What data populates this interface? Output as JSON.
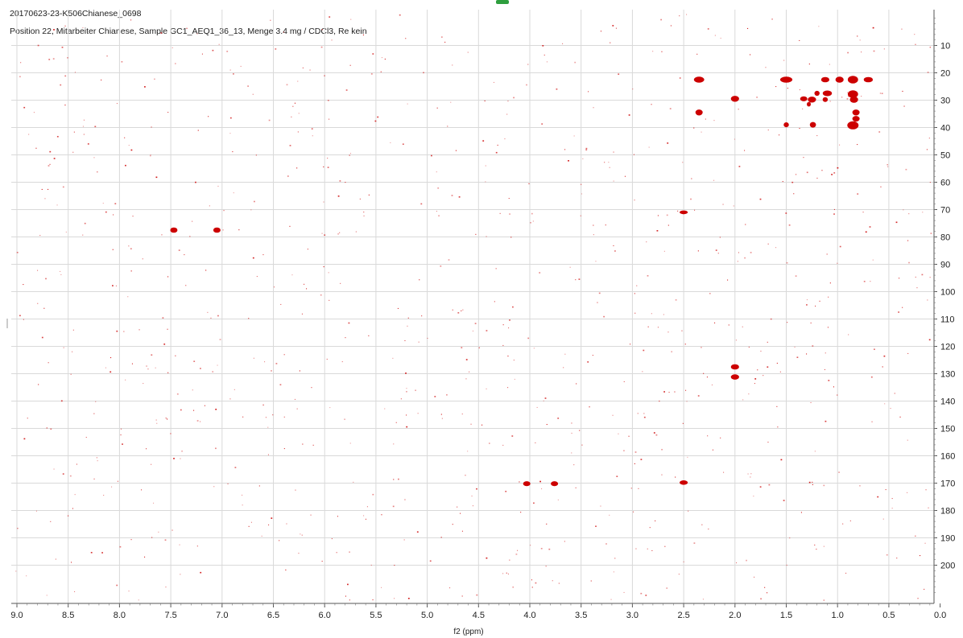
{
  "chart_data": {
    "type": "scatter",
    "title": "20170623-23-K506Chianese_0698",
    "subtitle": "Position 22, Mitarbeiter Chianese, Sample GC1_AEQ1_36_13, Menge 3.4 mg / CDCl3, Re kein",
    "xlabel": "f2 (ppm)",
    "ylabel": "",
    "xlim": [
      9.0,
      0.0
    ],
    "ylim": [
      210,
      0
    ],
    "xticks": [
      "9.0",
      "8.5",
      "8.0",
      "7.5",
      "7.0",
      "6.5",
      "6.0",
      "5.5",
      "5.0",
      "4.5",
      "4.0",
      "3.5",
      "3.0",
      "2.5",
      "2.0",
      "1.5",
      "1.0",
      "0.5",
      "0.0"
    ],
    "yticks": [
      "10",
      "20",
      "30",
      "40",
      "50",
      "60",
      "70",
      "80",
      "90",
      "100",
      "110",
      "120",
      "130",
      "140",
      "150",
      "160",
      "170",
      "180",
      "190",
      "200"
    ],
    "grid": true,
    "peak_color": "#cc0000",
    "peaks": [
      {
        "x": 2.35,
        "y": 22.5,
        "w": 0.1,
        "h": 1.8
      },
      {
        "x": 1.5,
        "y": 22.5,
        "w": 0.12,
        "h": 1.8
      },
      {
        "x": 1.12,
        "y": 22.5,
        "w": 0.08,
        "h": 1.6
      },
      {
        "x": 0.98,
        "y": 22.5,
        "w": 0.08,
        "h": 1.8
      },
      {
        "x": 0.85,
        "y": 22.5,
        "w": 0.1,
        "h": 2.5
      },
      {
        "x": 0.7,
        "y": 22.5,
        "w": 0.09,
        "h": 1.6
      },
      {
        "x": 1.2,
        "y": 27.5,
        "w": 0.05,
        "h": 1.5
      },
      {
        "x": 1.1,
        "y": 27.5,
        "w": 0.09,
        "h": 1.7
      },
      {
        "x": 0.85,
        "y": 27.8,
        "w": 0.1,
        "h": 2.5
      },
      {
        "x": 2.0,
        "y": 29.5,
        "w": 0.08,
        "h": 1.8
      },
      {
        "x": 1.33,
        "y": 29.5,
        "w": 0.07,
        "h": 1.5
      },
      {
        "x": 1.25,
        "y": 29.8,
        "w": 0.08,
        "h": 1.8
      },
      {
        "x": 1.12,
        "y": 29.8,
        "w": 0.05,
        "h": 1.4
      },
      {
        "x": 0.84,
        "y": 29.8,
        "w": 0.08,
        "h": 2.0
      },
      {
        "x": 1.28,
        "y": 31.5,
        "w": 0.04,
        "h": 1.3
      },
      {
        "x": 2.35,
        "y": 34.5,
        "w": 0.07,
        "h": 1.8
      },
      {
        "x": 0.82,
        "y": 34.5,
        "w": 0.07,
        "h": 1.8
      },
      {
        "x": 0.82,
        "y": 36.8,
        "w": 0.07,
        "h": 1.7
      },
      {
        "x": 1.5,
        "y": 39.0,
        "w": 0.05,
        "h": 1.5
      },
      {
        "x": 1.24,
        "y": 39.0,
        "w": 0.06,
        "h": 1.7
      },
      {
        "x": 0.85,
        "y": 39.2,
        "w": 0.11,
        "h": 2.6
      },
      {
        "x": 2.5,
        "y": 71.0,
        "w": 0.08,
        "h": 1.0
      },
      {
        "x": 7.47,
        "y": 77.5,
        "w": 0.07,
        "h": 1.6
      },
      {
        "x": 7.05,
        "y": 77.5,
        "w": 0.07,
        "h": 1.6
      },
      {
        "x": 2.0,
        "y": 127.5,
        "w": 0.08,
        "h": 1.6
      },
      {
        "x": 2.0,
        "y": 131.2,
        "w": 0.08,
        "h": 1.6
      },
      {
        "x": 4.03,
        "y": 170.2,
        "w": 0.07,
        "h": 1.5
      },
      {
        "x": 3.76,
        "y": 170.2,
        "w": 0.07,
        "h": 1.5
      },
      {
        "x": 2.5,
        "y": 169.8,
        "w": 0.08,
        "h": 1.3
      }
    ],
    "noise_count": 900
  }
}
